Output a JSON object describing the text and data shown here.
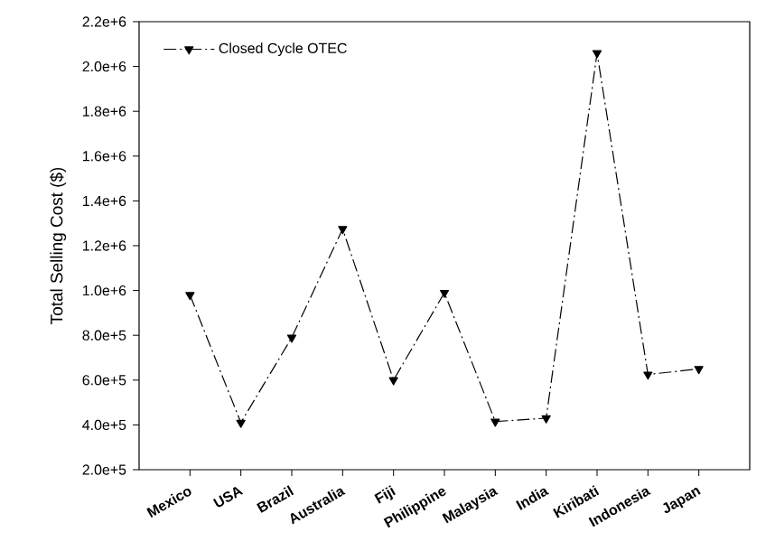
{
  "chart_data": {
    "type": "line",
    "ylabel": "Total Selling Cost ($)",
    "categories": [
      "Mexico",
      "USA",
      "Brazil",
      "Australia",
      "Fiji",
      "Philippine",
      "Malaysia",
      "India",
      "Kiribati",
      "Indonesia",
      "Japan"
    ],
    "series": [
      {
        "name": "Closed Cycle OTEC",
        "color": "#000000",
        "values": [
          980000,
          410000,
          790000,
          1275000,
          600000,
          990000,
          415000,
          430000,
          2060000,
          625000,
          650000
        ]
      }
    ],
    "ylim": [
      200000,
      2200000
    ],
    "yticks": [
      {
        "value": 200000,
        "label": "2.0e+5"
      },
      {
        "value": 400000,
        "label": "4.0e+5"
      },
      {
        "value": 600000,
        "label": "6.0e+5"
      },
      {
        "value": 800000,
        "label": "8.0e+5"
      },
      {
        "value": 1000000,
        "label": "1.0e+6"
      },
      {
        "value": 1200000,
        "label": "1.2e+6"
      },
      {
        "value": 1400000,
        "label": "1.4e+6"
      },
      {
        "value": 1600000,
        "label": "1.6e+6"
      },
      {
        "value": 1800000,
        "label": "1.8e+6"
      },
      {
        "value": 2000000,
        "label": "2.0e+6"
      },
      {
        "value": 2200000,
        "label": "2.2e+6"
      }
    ],
    "legend": "top left",
    "marker": "triangle",
    "line_style": "dashed",
    "grid": false
  }
}
